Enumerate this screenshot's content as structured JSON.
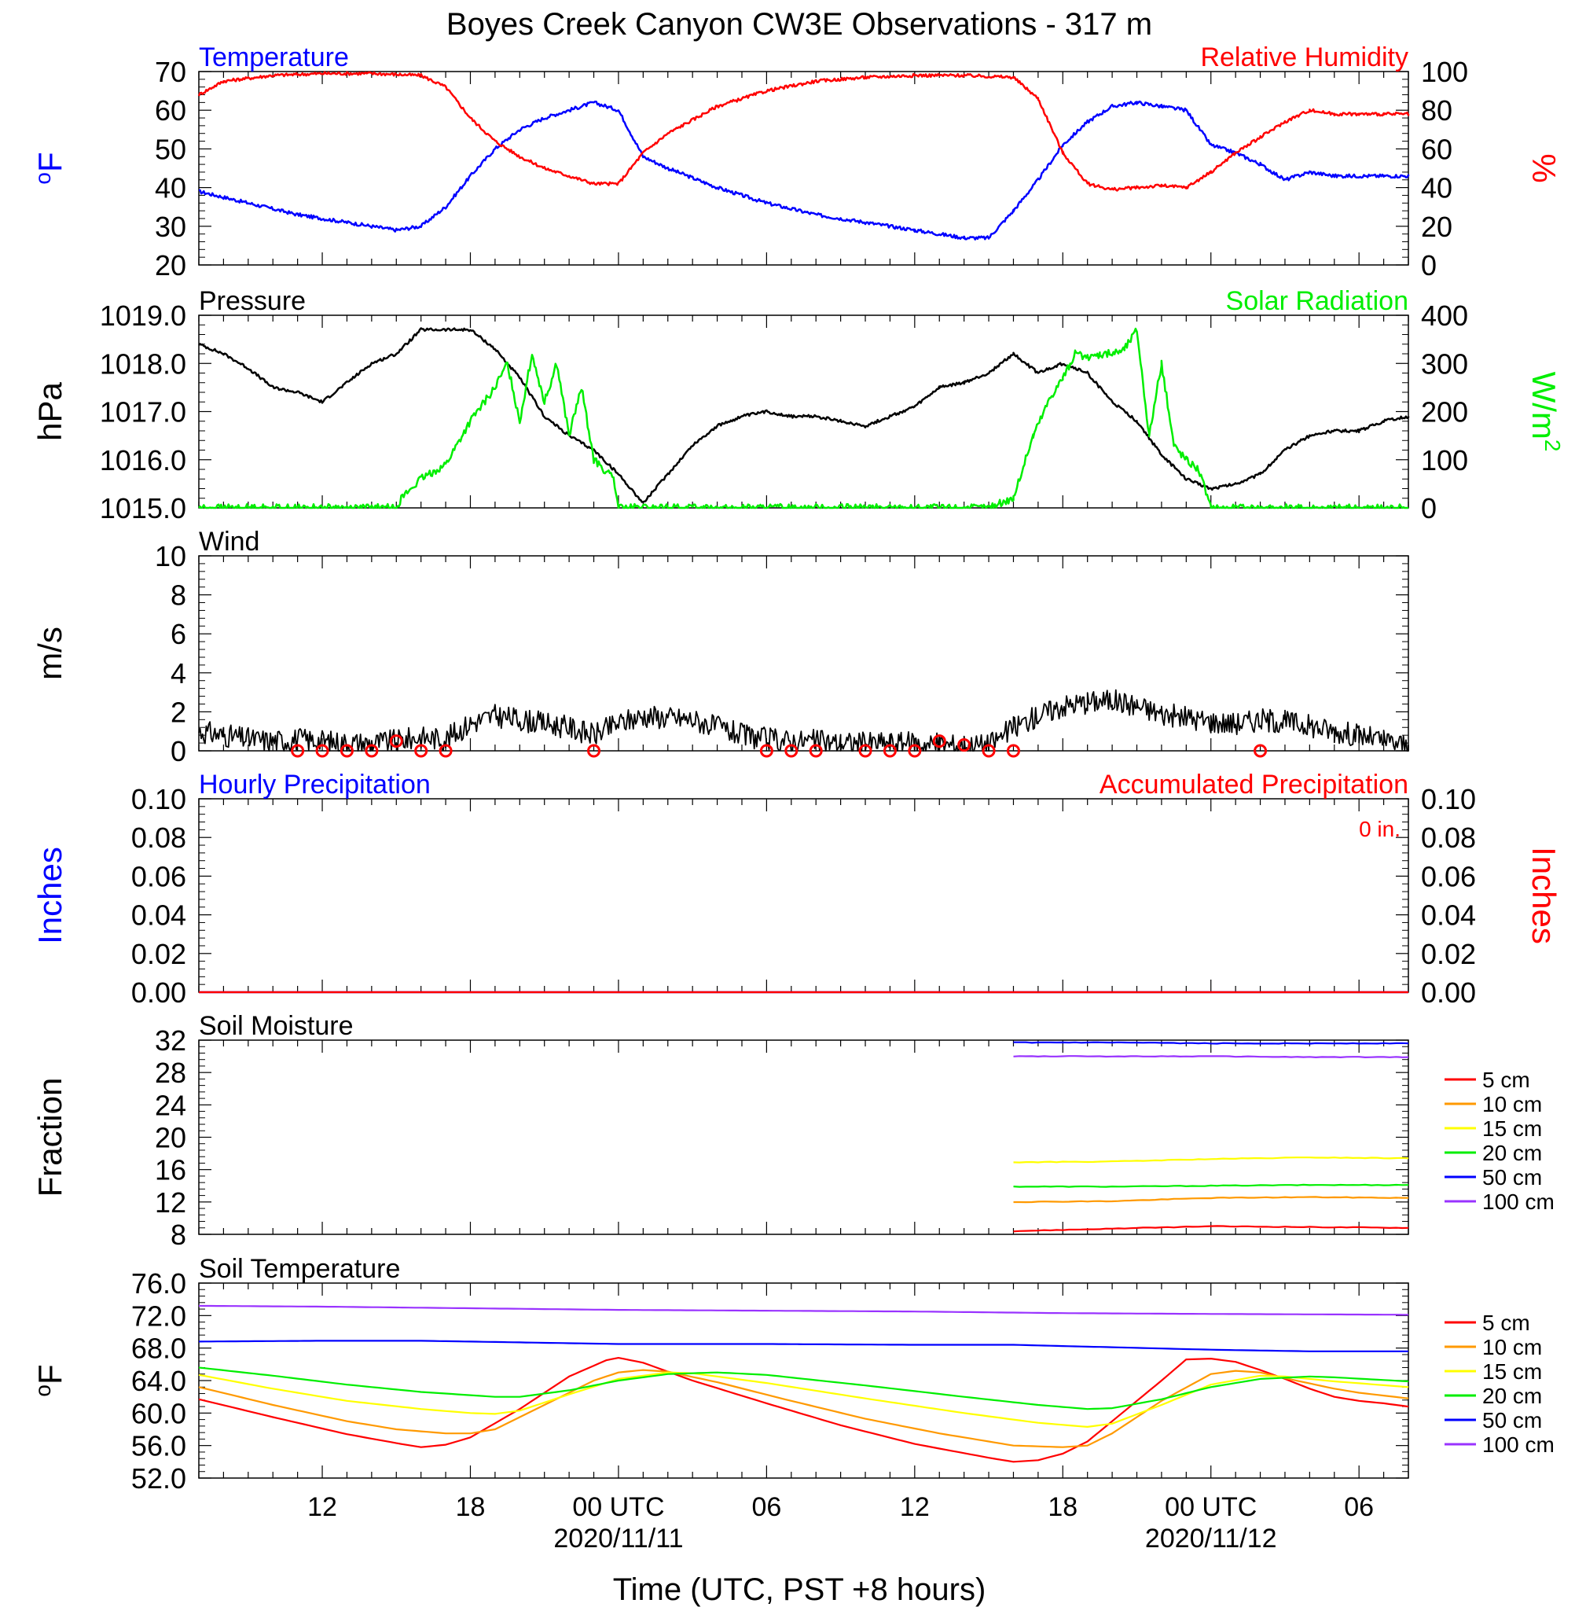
{
  "title": "Boyes Creek Canyon CW3E Observations - 317 m",
  "x_axis": {
    "label": "Time (UTC, PST +8 hours)",
    "range_hours": [
      7,
      56
    ],
    "tick_hours": [
      12,
      18,
      24,
      30,
      36,
      42,
      48,
      54
    ],
    "tick_labels": [
      "12",
      "18",
      "00 UTC",
      "06",
      "12",
      "18",
      "00 UTC",
      "06"
    ],
    "date_labels": [
      {
        "hour": 24,
        "text": "2020/11/11"
      },
      {
        "hour": 48,
        "text": "2020/11/12"
      }
    ]
  },
  "colors": {
    "blue": "#0000ff",
    "red": "#ff0000",
    "green": "#00ee00",
    "black": "#000000"
  },
  "chart_data": [
    {
      "type": "line",
      "panel": "temperature-humidity",
      "left_title": "Temperature",
      "right_title": "Relative Humidity",
      "ylabel_left": "oF",
      "ylabel_right": "%",
      "ylim_left": [
        20,
        70
      ],
      "yticks_left": [
        20,
        30,
        40,
        50,
        60,
        70
      ],
      "ylim_right": [
        0,
        100
      ],
      "yticks_right": [
        0,
        20,
        40,
        60,
        80,
        100
      ],
      "series": [
        {
          "name": "Temperature",
          "axis": "left",
          "color": "#0000ff",
          "x": [
            7,
            9,
            11,
            13,
            15,
            16,
            17,
            18,
            19,
            20,
            21,
            22,
            23,
            24,
            25,
            26,
            28,
            30,
            32,
            34,
            36,
            38,
            39,
            40,
            41,
            42,
            43,
            44,
            45,
            46,
            47,
            48,
            49,
            50,
            51,
            52,
            53,
            54,
            55,
            56
          ],
          "values": [
            39,
            36,
            33,
            31,
            29,
            30,
            35,
            43,
            50,
            55,
            58,
            60,
            62,
            60,
            48,
            45,
            40,
            36,
            33,
            31,
            29,
            27,
            27,
            34,
            42,
            51,
            57,
            61,
            62,
            61,
            60,
            51,
            49,
            46,
            42,
            44,
            43,
            43,
            43,
            43
          ]
        },
        {
          "name": "Relative Humidity",
          "axis": "right",
          "color": "#ff0000",
          "x": [
            7,
            8,
            10,
            12,
            14,
            16,
            17,
            18,
            19,
            20,
            21,
            22,
            23,
            24,
            25,
            26,
            28,
            30,
            32,
            34,
            36,
            38,
            40,
            41,
            42,
            43,
            44,
            45,
            46,
            47,
            48,
            49,
            50,
            51,
            52,
            53,
            54,
            55,
            56
          ],
          "values": [
            88,
            95,
            98,
            99,
            99,
            98,
            92,
            76,
            64,
            56,
            50,
            46,
            42,
            42,
            58,
            68,
            82,
            90,
            95,
            97,
            98,
            98,
            97,
            86,
            58,
            42,
            39,
            40,
            41,
            40,
            48,
            58,
            66,
            74,
            80,
            78,
            78,
            78,
            78
          ]
        }
      ]
    },
    {
      "type": "line",
      "panel": "pressure-solar",
      "left_title": "Pressure",
      "right_title": "Solar Radiation",
      "ylabel_left": "hPa",
      "ylabel_right": "W/m2",
      "ylim_left": [
        1015.0,
        1019.0
      ],
      "yticks_left": [
        1015.0,
        1016.0,
        1017.0,
        1018.0,
        1019.0
      ],
      "yticks_left_labels": [
        "1015.0",
        "1016.0",
        "1017.0",
        "1018.0",
        "1019.0"
      ],
      "ylim_right": [
        0,
        400
      ],
      "yticks_right": [
        0,
        100,
        200,
        300,
        400
      ],
      "series": [
        {
          "name": "Pressure",
          "axis": "left",
          "color": "#000000",
          "x": [
            7,
            8,
            9,
            10,
            11,
            12,
            13,
            14,
            15,
            16,
            17,
            18,
            19,
            20,
            21,
            22,
            23,
            24,
            25,
            26,
            27,
            28,
            29,
            30,
            31,
            32,
            33,
            34,
            35,
            36,
            37,
            38,
            39,
            40,
            41,
            42,
            43,
            44,
            45,
            46,
            47,
            48,
            49,
            50,
            51,
            52,
            53,
            54,
            55,
            56
          ],
          "values": [
            1018.4,
            1018.2,
            1017.9,
            1017.5,
            1017.4,
            1017.2,
            1017.6,
            1018.0,
            1018.2,
            1018.7,
            1018.7,
            1018.7,
            1018.3,
            1017.7,
            1016.9,
            1016.5,
            1016.2,
            1015.7,
            1015.1,
            1015.7,
            1016.3,
            1016.7,
            1016.9,
            1017.0,
            1016.9,
            1016.9,
            1016.8,
            1016.7,
            1016.9,
            1017.1,
            1017.5,
            1017.6,
            1017.8,
            1018.2,
            1017.8,
            1018.0,
            1017.8,
            1017.2,
            1016.8,
            1016.1,
            1015.6,
            1015.4,
            1015.5,
            1015.7,
            1016.2,
            1016.5,
            1016.6,
            1016.6,
            1016.8,
            1016.9
          ]
        },
        {
          "name": "Solar Radiation",
          "axis": "right",
          "color": "#00ee00",
          "x": [
            7,
            15,
            15.2,
            16,
            17,
            18,
            19,
            19.5,
            20,
            20.5,
            21,
            21.5,
            22,
            22.5,
            23,
            23.8,
            24,
            39,
            40,
            40.8,
            41.5,
            42,
            42.5,
            43,
            43.5,
            44,
            44.5,
            45,
            45.5,
            46,
            46.5,
            47,
            47.5,
            48,
            56
          ],
          "values": [
            0,
            0,
            20,
            60,
            90,
            180,
            250,
            300,
            180,
            320,
            220,
            300,
            150,
            250,
            100,
            60,
            0,
            0,
            20,
            150,
            230,
            270,
            320,
            310,
            320,
            320,
            330,
            370,
            150,
            300,
            130,
            100,
            80,
            0,
            0
          ]
        }
      ]
    },
    {
      "type": "line",
      "panel": "wind",
      "left_title": "Wind",
      "ylabel_left": "m/s",
      "ylim_left": [
        0,
        10
      ],
      "yticks_left": [
        0,
        2,
        4,
        6,
        8,
        10
      ],
      "series": [
        {
          "name": "Wind",
          "axis": "left",
          "color": "#000000",
          "x": [
            7,
            8,
            9,
            10,
            11,
            12,
            13,
            14,
            15,
            16,
            17,
            18,
            19,
            20,
            21,
            22,
            23,
            24,
            25,
            26,
            27,
            28,
            29,
            30,
            31,
            32,
            33,
            34,
            35,
            36,
            37,
            38,
            39,
            40,
            41,
            42,
            43,
            44,
            45,
            46,
            47,
            48,
            49,
            50,
            51,
            52,
            53,
            54,
            55,
            56
          ],
          "values": [
            1.0,
            0.8,
            0.6,
            0.5,
            0.6,
            0.5,
            0.4,
            0.4,
            0.5,
            0.7,
            0.6,
            1.4,
            1.8,
            1.6,
            1.4,
            1.2,
            0.8,
            1.4,
            1.8,
            1.7,
            1.6,
            1.2,
            0.8,
            0.6,
            0.5,
            0.5,
            0.4,
            0.4,
            0.4,
            0.4,
            0.3,
            0.3,
            0.3,
            1.2,
            1.8,
            2.3,
            2.5,
            2.6,
            2.3,
            1.9,
            1.7,
            1.5,
            1.4,
            1.6,
            1.5,
            1.3,
            1.0,
            0.8,
            0.5,
            0.3
          ]
        }
      ],
      "calm_markers_hours": [
        11,
        12,
        13,
        14,
        15,
        16,
        17,
        23,
        30,
        31,
        32,
        34,
        35,
        36,
        37,
        38,
        39,
        40,
        50
      ],
      "calm_marker_values": [
        0,
        0,
        0,
        0,
        0.5,
        0,
        0,
        0,
        0,
        0,
        0,
        0,
        0,
        0,
        0.5,
        0.3,
        0,
        0,
        0
      ]
    },
    {
      "type": "line",
      "panel": "precipitation",
      "left_title": "Hourly Precipitation",
      "right_title": "Accumulated Precipitation",
      "annotation": "0 in.",
      "ylabel_left": "Inches",
      "ylabel_right": "Inches",
      "ylim_left": [
        0,
        0.1
      ],
      "yticks_left": [
        0.0,
        0.02,
        0.04,
        0.06,
        0.08,
        0.1
      ],
      "yticks_labels": [
        "0.00",
        "0.02",
        "0.04",
        "0.06",
        "0.08",
        "0.10"
      ],
      "series": [
        {
          "name": "Hourly Precipitation",
          "axis": "left",
          "color": "#0000ff",
          "x": [
            7,
            56
          ],
          "values": [
            0,
            0
          ]
        },
        {
          "name": "Accumulated Precipitation",
          "axis": "left",
          "color": "#ff0000",
          "x": [
            7,
            56
          ],
          "values": [
            0,
            0
          ]
        }
      ]
    },
    {
      "type": "line",
      "panel": "soil-moisture",
      "left_title": "Soil Moisture",
      "ylabel_left": "Fraction",
      "ylim_left": [
        8,
        32
      ],
      "yticks_left": [
        8,
        12,
        16,
        20,
        24,
        28,
        32
      ],
      "series": [
        {
          "name": "5 cm",
          "color": "#ff0000",
          "x": [
            40,
            44,
            48,
            52,
            56
          ],
          "values": [
            8.4,
            8.7,
            9.0,
            8.9,
            8.8
          ]
        },
        {
          "name": "10 cm",
          "color": "#ff9900",
          "x": [
            40,
            44,
            48,
            52,
            56
          ],
          "values": [
            12.0,
            12.1,
            12.5,
            12.6,
            12.5
          ]
        },
        {
          "name": "15 cm",
          "color": "#ffff00",
          "x": [
            40,
            44,
            48,
            52,
            56
          ],
          "values": [
            16.9,
            17.0,
            17.3,
            17.5,
            17.4
          ]
        },
        {
          "name": "20 cm",
          "color": "#00ee00",
          "x": [
            40,
            44,
            48,
            52,
            56
          ],
          "values": [
            13.9,
            13.9,
            14.0,
            14.1,
            14.1
          ]
        },
        {
          "name": "50 cm",
          "color": "#0000ff",
          "x": [
            40,
            44,
            48,
            52,
            56
          ],
          "values": [
            31.7,
            31.7,
            31.6,
            31.6,
            31.6
          ]
        },
        {
          "name": "100 cm",
          "color": "#9933ff",
          "x": [
            40,
            44,
            48,
            52,
            56
          ],
          "values": [
            30.0,
            30.0,
            30.0,
            29.9,
            29.9
          ]
        }
      ],
      "legend": [
        "5 cm",
        "10 cm",
        "15 cm",
        "20 cm",
        "50 cm",
        "100 cm"
      ]
    },
    {
      "type": "line",
      "panel": "soil-temperature",
      "left_title": "Soil Temperature",
      "ylabel_left": "oF",
      "ylim_left": [
        52,
        76
      ],
      "yticks_left": [
        52,
        56,
        60,
        64,
        68,
        72,
        76
      ],
      "yticks_labels": [
        "52.0",
        "56.0",
        "60.0",
        "64.0",
        "68.0",
        "72.0",
        "76.0"
      ],
      "series": [
        {
          "name": "5 cm",
          "color": "#ff0000",
          "x": [
            7,
            10,
            13,
            15,
            16,
            17,
            18,
            20,
            22,
            23.5,
            24,
            25,
            27,
            30,
            33,
            36,
            39,
            40,
            41,
            42,
            43,
            44,
            46,
            47,
            48,
            49,
            50,
            51,
            52,
            53,
            54,
            55,
            56
          ],
          "values": [
            61.7,
            59.5,
            57.4,
            56.3,
            55.8,
            56.1,
            57.0,
            60.5,
            64.5,
            66.5,
            66.8,
            66.2,
            64.0,
            61.2,
            58.5,
            56.2,
            54.5,
            54.0,
            54.2,
            55.0,
            56.5,
            59.0,
            64.0,
            66.6,
            66.7,
            66.3,
            65.3,
            64.2,
            63.0,
            62.0,
            61.5,
            61.2,
            60.8
          ]
        },
        {
          "name": "10 cm",
          "color": "#ff9900",
          "x": [
            7,
            10,
            13,
            15,
            17,
            18,
            19,
            21,
            23,
            24,
            25,
            26,
            28,
            31,
            34,
            37,
            40,
            42,
            43,
            44,
            46,
            48,
            49,
            50,
            51,
            53,
            54,
            56
          ],
          "values": [
            63.2,
            61.0,
            59.0,
            58.0,
            57.5,
            57.5,
            58.0,
            61.0,
            64.0,
            65.0,
            65.3,
            65.1,
            63.8,
            61.5,
            59.3,
            57.5,
            56.0,
            55.8,
            56.0,
            57.5,
            61.5,
            64.8,
            65.2,
            65.0,
            64.3,
            63.0,
            62.5,
            61.8
          ]
        },
        {
          "name": "15 cm",
          "color": "#ffff00",
          "x": [
            7,
            10,
            13,
            16,
            18,
            19,
            20,
            22,
            24,
            26,
            27,
            30,
            34,
            38,
            41,
            43,
            44,
            46,
            48,
            50,
            51,
            53,
            56
          ],
          "values": [
            64.7,
            63.0,
            61.5,
            60.5,
            60.0,
            59.9,
            60.3,
            62.3,
            64.2,
            65.0,
            64.9,
            63.7,
            61.8,
            60.0,
            58.8,
            58.3,
            58.7,
            61.0,
            63.5,
            64.6,
            64.5,
            63.9,
            63.2
          ]
        },
        {
          "name": "20 cm",
          "color": "#00ee00",
          "x": [
            7,
            10,
            13,
            16,
            19,
            20,
            22,
            24,
            26,
            28,
            30,
            34,
            38,
            41,
            43,
            44,
            46,
            48,
            50,
            52,
            53,
            56
          ],
          "values": [
            65.6,
            64.6,
            63.5,
            62.6,
            62.0,
            62.0,
            62.8,
            64.0,
            64.8,
            65.0,
            64.7,
            63.4,
            62.0,
            61.0,
            60.5,
            60.6,
            61.7,
            63.2,
            64.2,
            64.5,
            64.4,
            63.9
          ]
        },
        {
          "name": "50 cm",
          "color": "#0000ff",
          "x": [
            7,
            12,
            16,
            20,
            24,
            30,
            36,
            40,
            44,
            48,
            52,
            56
          ],
          "values": [
            68.8,
            68.9,
            68.9,
            68.7,
            68.5,
            68.5,
            68.4,
            68.4,
            68.1,
            67.8,
            67.6,
            67.6
          ]
        },
        {
          "name": "100 cm",
          "color": "#9933ff",
          "x": [
            7,
            12,
            18,
            24,
            30,
            36,
            42,
            48,
            56
          ],
          "values": [
            73.2,
            73.1,
            72.9,
            72.7,
            72.6,
            72.5,
            72.3,
            72.2,
            72.1
          ]
        }
      ],
      "legend": [
        "5 cm",
        "10 cm",
        "15 cm",
        "20 cm",
        "50 cm",
        "100 cm"
      ]
    }
  ]
}
